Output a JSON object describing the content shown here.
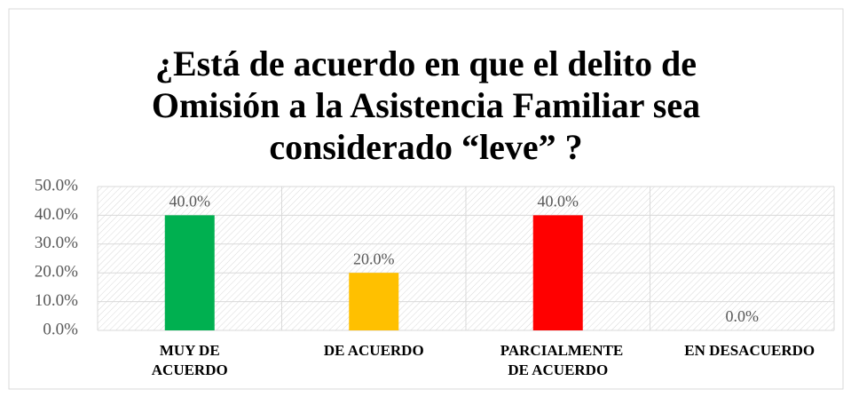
{
  "chart_data": {
    "type": "bar",
    "title": [
      "¿Está de acuerdo en que el delito de",
      "Omisión a la Asistencia Familiar sea",
      "considerado “leve” ?"
    ],
    "categories": [
      "MUY DE ACUERDO",
      "DE ACUERDO",
      "PARCIALMENTE DE ACUERDO",
      "EN DESACUERDO"
    ],
    "values": [
      40,
      20,
      40,
      0
    ],
    "value_labels": [
      "40.0%",
      "20.0%",
      "40.0%",
      "0.0%"
    ],
    "colors": [
      "#00b050",
      "#ffc000",
      "#ff0000",
      "#7f7f7f"
    ],
    "ylim": [
      0,
      50
    ],
    "yticks": [
      {
        "value": 0,
        "label": "0.0%"
      },
      {
        "value": 10,
        "label": "10.0%"
      },
      {
        "value": 20,
        "label": "20.0%"
      },
      {
        "value": 30,
        "label": "30.0%"
      },
      {
        "value": 40,
        "label": "40.0%"
      },
      {
        "value": 50,
        "label": "50.0%"
      }
    ],
    "grid": true
  }
}
